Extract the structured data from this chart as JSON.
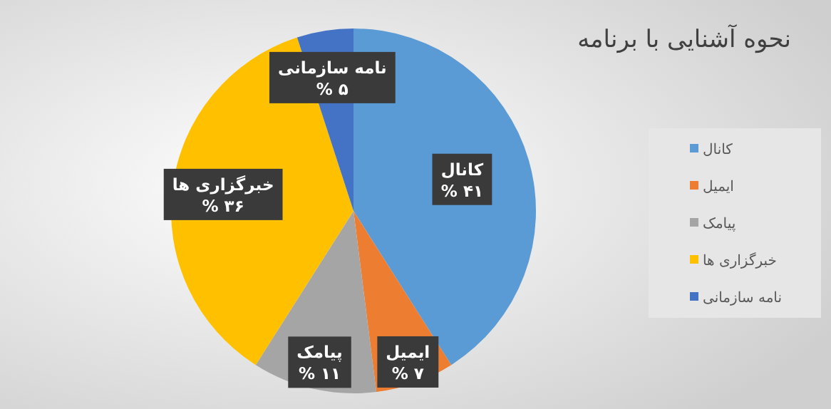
{
  "chart_data": {
    "type": "pie",
    "title": "نحوه آشنایی با برنامه",
    "categories": [
      "کانال",
      "ایمیل",
      "پیامک",
      "خبرگزاری ها",
      "نامه سازمانی"
    ],
    "values": [
      41,
      7,
      11,
      36,
      5
    ],
    "colors": [
      "#5b9bd5",
      "#ed7d31",
      "#a5a5a5",
      "#ffc000",
      "#4472c4"
    ],
    "value_labels": [
      "۴۱ %",
      "۷ %",
      "۱۱ %",
      "۳۶ %",
      "۵ %"
    ],
    "legend": "right"
  }
}
